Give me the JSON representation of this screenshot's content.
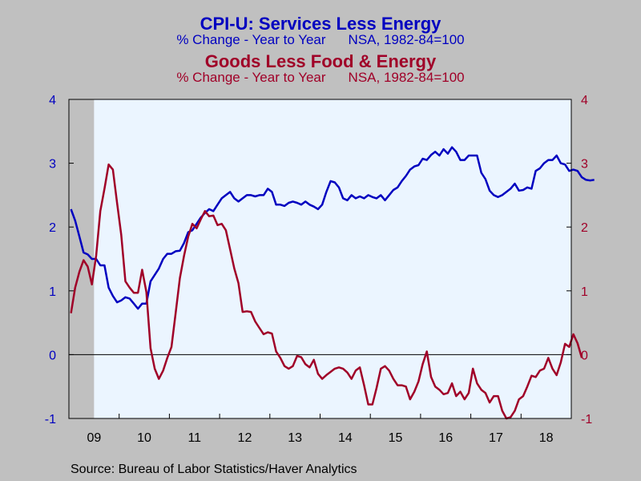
{
  "titles": {
    "series1_title": "CPI-U: Services Less Energy",
    "series1_subtitle_a": "% Change - Year to Year",
    "series1_subtitle_b": "NSA, 1982-84=100",
    "series2_title": "Goods Less Food & Energy",
    "series2_subtitle_a": "% Change - Year to Year",
    "series2_subtitle_b": "NSA, 1982-84=100"
  },
  "source": "Source:  Bureau of Labor Statistics/Haver Analytics",
  "colors": {
    "series1": "#0000c0",
    "series2": "#a00028",
    "plot_bg": "#ebf5ff",
    "page_bg": "#c0c0c0",
    "recession": "#c0c0c0"
  },
  "chart_data": {
    "type": "line",
    "x_start": "2009-01",
    "x_end": "2018-12",
    "x_tick_labels": [
      "09",
      "10",
      "11",
      "12",
      "13",
      "14",
      "15",
      "16",
      "17",
      "18"
    ],
    "ylim_left": [
      -1,
      4
    ],
    "ylim_right": [
      -1,
      4
    ],
    "y_ticks_left": [
      "-1",
      "0",
      "1",
      "2",
      "3",
      "4"
    ],
    "y_ticks_right": [
      "-1",
      "0",
      "1",
      "2",
      "3",
      "4"
    ],
    "zero_line": true,
    "recession_shading": [
      "2009-01",
      "2009-06"
    ],
    "series": [
      {
        "name": "CPI-U: Services Less Energy",
        "axis": "left",
        "color": "#0000c0",
        "start": "2009-01",
        "values": [
          2.28,
          2.1,
          1.85,
          1.6,
          1.57,
          1.5,
          1.5,
          1.4,
          1.4,
          1.05,
          0.92,
          0.82,
          0.85,
          0.9,
          0.88,
          0.8,
          0.72,
          0.8,
          0.8,
          1.15,
          1.25,
          1.35,
          1.5,
          1.58,
          1.58,
          1.62,
          1.63,
          1.75,
          1.92,
          1.95,
          2.05,
          2.15,
          2.22,
          2.28,
          2.25,
          2.35,
          2.45,
          2.5,
          2.55,
          2.45,
          2.4,
          2.45,
          2.5,
          2.5,
          2.48,
          2.5,
          2.5,
          2.6,
          2.55,
          2.35,
          2.35,
          2.33,
          2.38,
          2.4,
          2.38,
          2.35,
          2.4,
          2.35,
          2.32,
          2.28,
          2.35,
          2.55,
          2.72,
          2.7,
          2.62,
          2.45,
          2.42,
          2.5,
          2.45,
          2.48,
          2.45,
          2.5,
          2.47,
          2.45,
          2.5,
          2.42,
          2.5,
          2.58,
          2.62,
          2.72,
          2.8,
          2.9,
          2.95,
          2.97,
          3.07,
          3.05,
          3.13,
          3.18,
          3.12,
          3.22,
          3.15,
          3.25,
          3.18,
          3.05,
          3.05,
          3.12,
          3.12,
          3.12,
          2.85,
          2.75,
          2.57,
          2.5,
          2.47,
          2.5,
          2.55,
          2.6,
          2.68,
          2.57,
          2.58,
          2.62,
          2.6,
          2.88,
          2.92,
          3.0,
          3.05,
          3.05,
          3.12,
          3.0,
          2.98,
          2.88,
          2.9,
          2.88,
          2.78,
          2.74,
          2.73,
          2.74
        ]
      },
      {
        "name": "Goods Less Food & Energy",
        "axis": "right",
        "color": "#a00028",
        "start": "2009-01",
        "values": [
          0.65,
          1.05,
          1.3,
          1.48,
          1.38,
          1.1,
          1.55,
          2.25,
          2.6,
          2.98,
          2.9,
          2.38,
          1.88,
          1.15,
          1.05,
          0.97,
          0.97,
          1.33,
          0.98,
          0.1,
          -0.22,
          -0.38,
          -0.25,
          -0.05,
          0.12,
          0.65,
          1.2,
          1.55,
          1.85,
          2.05,
          1.98,
          2.12,
          2.25,
          2.17,
          2.18,
          2.03,
          2.05,
          1.95,
          1.65,
          1.35,
          1.12,
          0.67,
          0.68,
          0.67,
          0.52,
          0.42,
          0.32,
          0.35,
          0.33,
          0.05,
          -0.05,
          -0.18,
          -0.22,
          -0.18,
          -0.02,
          -0.04,
          -0.15,
          -0.2,
          -0.08,
          -0.3,
          -0.38,
          -0.32,
          -0.27,
          -0.22,
          -0.2,
          -0.22,
          -0.28,
          -0.38,
          -0.25,
          -0.2,
          -0.48,
          -0.78,
          -0.78,
          -0.52,
          -0.22,
          -0.18,
          -0.25,
          -0.38,
          -0.48,
          -0.48,
          -0.5,
          -0.7,
          -0.58,
          -0.42,
          -0.15,
          0.05,
          -0.35,
          -0.5,
          -0.55,
          -0.62,
          -0.6,
          -0.45,
          -0.65,
          -0.58,
          -0.7,
          -0.6,
          -0.22,
          -0.45,
          -0.55,
          -0.6,
          -0.75,
          -0.65,
          -0.65,
          -0.88,
          -1.0,
          -0.98,
          -0.88,
          -0.7,
          -0.65,
          -0.5,
          -0.33,
          -0.35,
          -0.25,
          -0.22,
          -0.05,
          -0.22,
          -0.32,
          -0.12,
          0.17,
          0.12,
          0.32,
          0.18,
          -0.05
        ]
      }
    ]
  }
}
